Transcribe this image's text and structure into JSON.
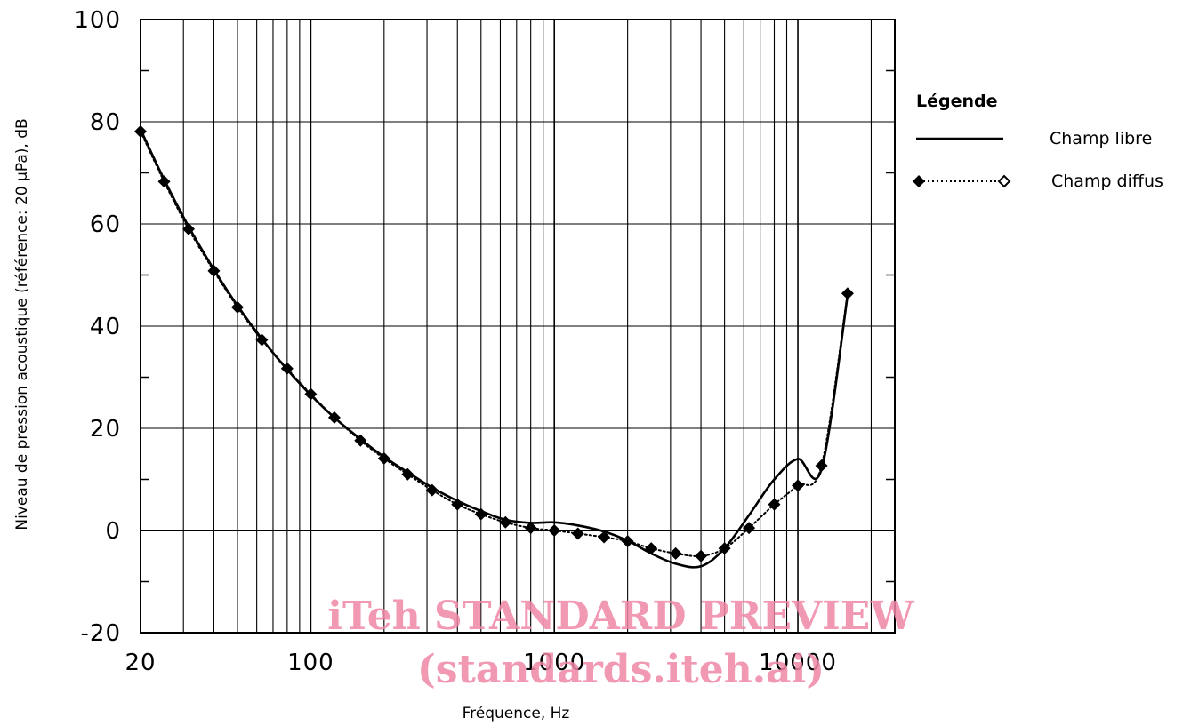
{
  "chart_data": {
    "type": "line",
    "title": "",
    "xlabel": "Fréquence, Hz",
    "ylabel": "Niveau de pression acoustique (référence: 20 µPa), dB",
    "xscale": "log",
    "xlim": [
      20,
      25000
    ],
    "ylim": [
      -20,
      100
    ],
    "grid": true,
    "x_tick_labels": [
      "20",
      "100",
      "1000",
      "10000"
    ],
    "x_tick_values": [
      20,
      100,
      1000,
      10000
    ],
    "y_tick_labels": [
      "100",
      "80",
      "60",
      "40",
      "20",
      "0",
      "-20"
    ],
    "y_tick_values": [
      100,
      80,
      60,
      40,
      20,
      0,
      -20
    ],
    "legend": {
      "title": "Légende",
      "placement": "right",
      "entries": [
        "Champ libre",
        "Champ diffus"
      ]
    },
    "series": [
      {
        "name": "Champ libre",
        "style": "solid",
        "x": [
          20,
          25,
          31.5,
          40,
          50,
          63,
          80,
          100,
          125,
          160,
          200,
          250,
          315,
          400,
          500,
          630,
          800,
          1000,
          1250,
          1600,
          2000,
          2500,
          3150,
          4000,
          5000,
          6300,
          8000,
          10000,
          12500,
          16000
        ],
        "y": [
          78.5,
          68.7,
          59.5,
          51.1,
          44.0,
          37.5,
          31.5,
          26.5,
          22.1,
          17.9,
          14.4,
          11.4,
          8.4,
          5.8,
          3.8,
          2.1,
          1.5,
          1.6,
          1.0,
          -0.2,
          -2.0,
          -4.5,
          -6.5,
          -7.0,
          -3.5,
          3.0,
          10.0,
          14.0,
          12.0,
          46.0
        ]
      },
      {
        "name": "Champ diffus",
        "style": "dotted",
        "x": [
          20,
          25,
          31.5,
          40,
          50,
          63,
          80,
          100,
          125,
          160,
          200,
          250,
          315,
          400,
          500,
          630,
          800,
          1000,
          1250,
          1600,
          2000,
          2500,
          3150,
          4000,
          5000,
          6300,
          8000,
          10000,
          12500,
          16000
        ],
        "y": [
          78.1,
          68.3,
          59.0,
          50.8,
          43.7,
          37.3,
          31.7,
          26.7,
          22.1,
          17.6,
          14.1,
          11.0,
          7.9,
          5.1,
          3.2,
          1.6,
          0.5,
          0.0,
          -0.6,
          -1.3,
          -2.1,
          -3.5,
          -4.5,
          -5.0,
          -3.5,
          0.5,
          5.1,
          8.8,
          12.7,
          46.4
        ]
      }
    ]
  },
  "watermark": {
    "line1": "iTeh STANDARD PREVIEW",
    "line2": "(standards.iteh.ai)",
    "color": "#ee86a4"
  }
}
